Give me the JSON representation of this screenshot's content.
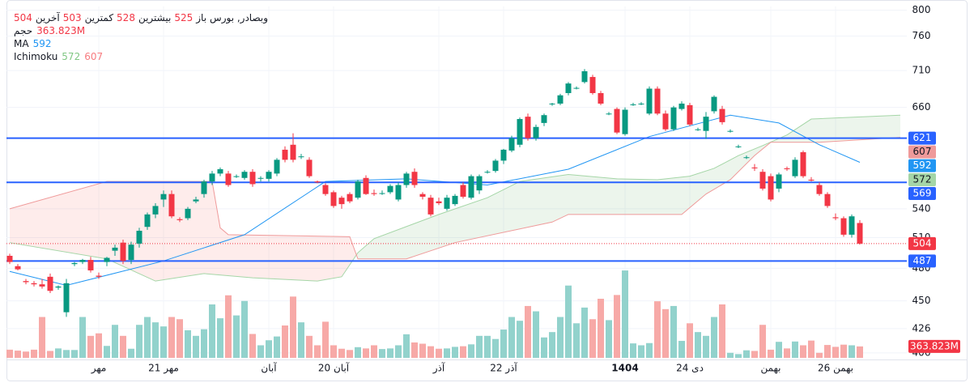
{
  "chart_data": {
    "type": "candlestick",
    "symbol": "وبصادر, بورس",
    "labels": {
      "open": "باز",
      "high": "بیشترین",
      "low": "کمترین",
      "last": "آخرین",
      "volume": "حجم"
    },
    "categories": [
      null,
      null,
      null,
      null,
      null,
      null,
      null,
      null,
      null,
      null,
      null,
      "مهر",
      null,
      null,
      null,
      null,
      null,
      null,
      null,
      "21 مهر",
      null,
      null,
      null,
      null,
      null,
      null,
      null,
      null,
      null,
      null,
      null,
      null,
      "آبان",
      null,
      null,
      null,
      null,
      null,
      null,
      null,
      "20 آبان",
      null,
      null,
      null,
      null,
      null,
      null,
      null,
      null,
      null,
      null,
      null,
      null,
      "آذر",
      null,
      null,
      null,
      null,
      null,
      null,
      null,
      "22 آذر",
      null,
      null,
      null,
      null,
      null,
      null,
      null,
      null,
      null,
      null,
      null,
      null,
      null,
      null,
      "1404",
      null,
      null,
      null,
      null,
      null,
      null,
      null,
      "24 دی",
      null,
      null,
      null,
      null,
      null,
      null,
      null,
      null,
      null,
      "بهمن",
      null,
      null,
      null,
      null,
      null,
      null,
      null,
      "26 بهمن",
      null,
      null,
      null
    ],
    "emphasized_categories": [
      76
    ],
    "open": [
      492,
      482,
      468,
      466,
      465,
      472,
      462,
      440,
      484,
      486,
      488,
      473,
      486,
      497,
      505,
      488,
      504,
      521,
      534,
      550,
      556,
      529,
      530,
      548,
      556,
      570,
      579,
      579,
      576,
      574,
      581,
      574,
      573,
      579,
      607,
      613,
      599,
      595,
      570,
      566,
      558,
      552,
      556,
      552,
      574,
      557,
      557,
      558,
      550,
      566,
      581,
      556,
      552,
      548,
      540,
      545,
      566,
      552,
      560,
      581,
      582,
      594,
      606,
      613,
      648,
      621,
      640,
      664,
      665,
      679,
      686,
      694,
      701,
      679,
      652,
      658,
      626,
      664,
      665,
      652,
      685,
      652,
      632,
      658,
      663,
      632,
      630,
      655,
      658,
      630,
      611,
      598,
      586,
      581,
      576,
      562,
      585,
      576,
      604,
      572,
      566,
      556,
      531,
      530,
      513,
      525
    ],
    "high": [
      494,
      484,
      470,
      468,
      470,
      475,
      464,
      470,
      486,
      489,
      491,
      476,
      491,
      503,
      508,
      506,
      520,
      536,
      546,
      560,
      560,
      531,
      542,
      553,
      572,
      582,
      586,
      582,
      578,
      583,
      584,
      576,
      583,
      597,
      611,
      627,
      602,
      598,
      571,
      568,
      560,
      554,
      558,
      572,
      577,
      561,
      560,
      567,
      569,
      581,
      585,
      558,
      555,
      552,
      555,
      556,
      569,
      578,
      578,
      583,
      596,
      608,
      624,
      647,
      652,
      638,
      652,
      666,
      678,
      694,
      688,
      712,
      704,
      682,
      654,
      660,
      660,
      666,
      667,
      688,
      688,
      656,
      662,
      668,
      666,
      634,
      654,
      676,
      662,
      632,
      613,
      600,
      590,
      584,
      579,
      580,
      587,
      598,
      606,
      575,
      569,
      558,
      535,
      532,
      534,
      528
    ],
    "low": [
      484,
      478,
      465,
      463,
      461,
      457,
      460,
      436,
      482,
      484,
      476,
      470,
      482,
      492,
      484,
      484,
      500,
      518,
      530,
      542,
      530,
      526,
      528,
      546,
      552,
      566,
      576,
      564,
      574,
      572,
      564,
      570,
      570,
      576,
      592,
      592,
      596,
      574,
      568,
      554,
      541,
      540,
      546,
      550,
      555,
      554,
      555,
      556,
      548,
      563,
      563,
      550,
      532,
      544,
      538,
      543,
      551,
      550,
      556,
      579,
      580,
      590,
      604,
      610,
      618,
      618,
      636,
      662,
      663,
      676,
      684,
      692,
      677,
      663,
      650,
      626,
      624,
      662,
      663,
      650,
      650,
      630,
      630,
      656,
      636,
      630,
      620,
      652,
      638,
      628,
      609,
      596,
      582,
      560,
      548,
      558,
      582,
      574,
      574,
      570,
      554,
      541,
      528,
      511,
      510,
      503
    ],
    "close": [
      486,
      479,
      467,
      465,
      463,
      459,
      463,
      466,
      485,
      488,
      478,
      472,
      490,
      500,
      487,
      503,
      517,
      534,
      543,
      556,
      532,
      528,
      540,
      550,
      570,
      579,
      584,
      566,
      576,
      581,
      567,
      574,
      581,
      595,
      595,
      595,
      599,
      576,
      569,
      556,
      543,
      545,
      548,
      570,
      556,
      556,
      557,
      565,
      566,
      579,
      566,
      553,
      534,
      546,
      552,
      554,
      553,
      576,
      576,
      581,
      594,
      607,
      621,
      645,
      621,
      635,
      650,
      665,
      676,
      692,
      686,
      709,
      679,
      665,
      652,
      628,
      657,
      664,
      665,
      685,
      652,
      632,
      660,
      665,
      638,
      632,
      648,
      674,
      641,
      630,
      611,
      598,
      585,
      562,
      550,
      578,
      584,
      595,
      576,
      571,
      556,
      543,
      530,
      513,
      532,
      504
    ],
    "volume": {
      "values": [
        260,
        230,
        200,
        260,
        1300,
        220,
        300,
        250,
        250,
        1300,
        700,
        780,
        380,
        1050,
        700,
        290,
        1050,
        1300,
        1130,
        1000,
        1300,
        1230,
        880,
        700,
        910,
        1700,
        1260,
        1990,
        1350,
        1810,
        760,
        400,
        560,
        680,
        1030,
        1950,
        1130,
        700,
        400,
        1150,
        400,
        290,
        250,
        340,
        300,
        400,
        280,
        300,
        400,
        750,
        490,
        450,
        370,
        290,
        300,
        350,
        370,
        430,
        700,
        700,
        600,
        900,
        1300,
        1180,
        1650,
        1480,
        650,
        820,
        1300,
        2300,
        1100,
        1600,
        1230,
        1880,
        1200,
        2000,
        2780,
        460,
        400,
        470,
        1800,
        1550,
        1650,
        540,
        1100,
        820,
        700,
        1300,
        1700,
        160,
        120,
        240,
        220,
        1050,
        260,
        510,
        300,
        520,
        400,
        550,
        160,
        410,
        350,
        420,
        400,
        363.823
      ],
      "last_label": "363.823M"
    },
    "up_color": "#089981",
    "down_color": "#f23645",
    "up_volume_color": "#92d2cc",
    "down_volume_color": "#f7a9a7",
    "ma": {
      "name": "MA",
      "color": "#2196f3",
      "x": [
        0,
        7,
        19,
        29,
        39,
        49,
        59,
        69,
        79,
        89,
        95,
        100,
        105
      ],
      "values": [
        477,
        464,
        487,
        513,
        570,
        573,
        566,
        584,
        623,
        650,
        640,
        613,
        592
      ]
    },
    "ichimoku": {
      "name": "Ichimoku",
      "current": [
        572,
        607
      ],
      "current_colors": [
        "#81c784",
        "#f77c80"
      ],
      "span_a": {
        "color": "#a5d6a7",
        "x": [
          0,
          12,
          18,
          24,
          30,
          38,
          41,
          43,
          45,
          53,
          59,
          63,
          69,
          75,
          80,
          84,
          87,
          90,
          93,
          96,
          99,
          110
        ],
        "values": [
          505,
          489,
          468,
          475,
          471,
          468,
          472,
          495,
          509,
          534,
          552,
          570,
          578,
          573,
          572,
          576,
          585,
          600,
          612,
          625,
          645,
          650
        ]
      },
      "span_b": {
        "color": "#ef9a9a",
        "x": [
          0,
          12,
          25,
          26,
          27,
          42,
          43,
          49,
          55,
          67,
          69,
          83,
          86,
          89,
          92,
          94,
          100,
          110
        ],
        "values": [
          540,
          570,
          570,
          520,
          513,
          511,
          489,
          489,
          505,
          526,
          534,
          534,
          556,
          572,
          600,
          616,
          616,
          622
        ]
      },
      "up_fill": "rgba(67,160,71,0.1)",
      "down_fill": "rgba(244,67,54,0.1)"
    },
    "price_lines": [
      {
        "value": 621,
        "color": "#2962ff"
      },
      {
        "value": 569,
        "color": "#2962ff"
      },
      {
        "value": 487,
        "color": "#2962ff"
      }
    ],
    "log_scale": true,
    "ylim": [
      402,
      806
    ],
    "yticks": [
      406,
      426,
      450,
      480,
      510,
      540,
      660,
      710,
      760,
      800
    ],
    "y2lim": [
      0,
      3400
    ],
    "grid": true
  }
}
